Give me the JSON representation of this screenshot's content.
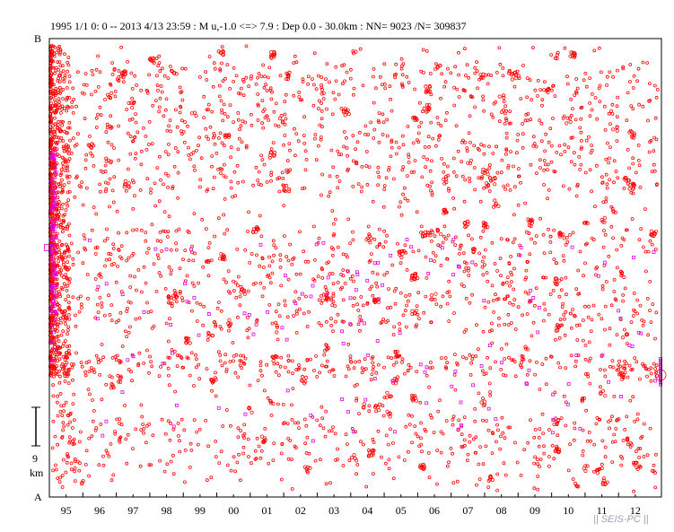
{
  "header": {
    "text": "1995 1/1 0: 0 -- 2013 4/13 23:59  : M u,-1.0 <=> 7.9   :  Dep 0.0 - 30.0km :  NN= 9023 /N= 309837"
  },
  "watermark": "|| SEIS-PC ||",
  "chart_data": {
    "type": "scatter",
    "x_axis": {
      "range": [
        1995.0,
        2013.28
      ],
      "tick_labels": [
        "95",
        "96",
        "97",
        "98",
        "99",
        "00",
        "01",
        "02",
        "03",
        "04",
        "05",
        "06",
        "07",
        "08",
        "09",
        "10",
        "11",
        "12"
      ],
      "tick_years": [
        1995,
        1996,
        1997,
        1998,
        1999,
        2000,
        2001,
        2002,
        2003,
        2004,
        2005,
        2006,
        2007,
        2008,
        2009,
        2010,
        2011,
        2012
      ]
    },
    "y_axis": {
      "top_label": "B",
      "bottom_label": "A",
      "scale_bar_value": "9",
      "scale_bar_unit": "km"
    },
    "colors": {
      "events": "#ff0000",
      "highlight_events": "#e000e0",
      "axis": "#000000"
    },
    "series": [
      {
        "marker": "circle",
        "color": "#ff0000",
        "approx_count": 9023
      },
      {
        "marker": "square",
        "color": "#e000e0"
      }
    ]
  }
}
